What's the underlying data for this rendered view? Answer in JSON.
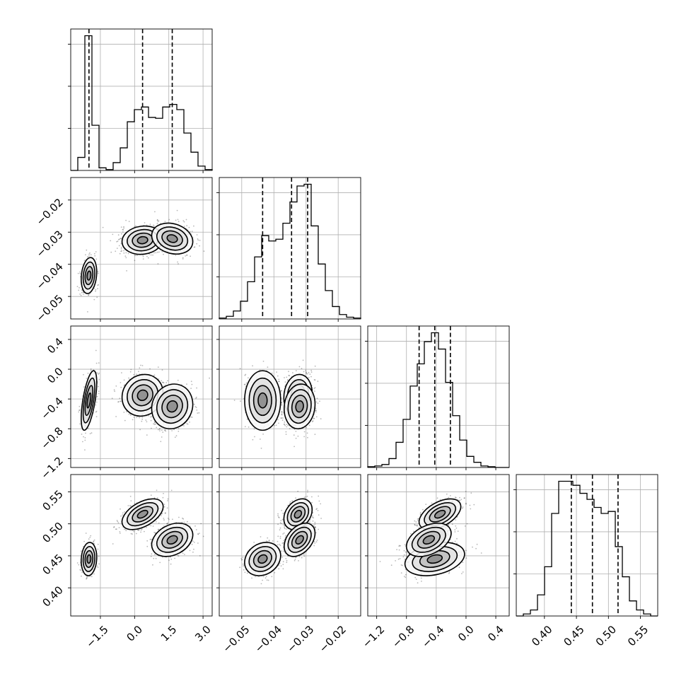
{
  "chart_data": {
    "type": "corner",
    "params": [
      {
        "range": [
          -2.8,
          3.4
        ],
        "ticks": [
          -1.5,
          0.0,
          1.5,
          3.0
        ],
        "tick_labels": [
          "−1.5",
          "0.0",
          "1.5",
          "3.0"
        ],
        "quantiles": [
          -2.0,
          0.35,
          1.65
        ],
        "modes": [
          {
            "mean": -2.0,
            "sd": 0.17,
            "weight": 0.26
          },
          {
            "mean": 0.35,
            "sd": 0.45,
            "weight": 0.37
          },
          {
            "mean": 1.65,
            "sd": 0.45,
            "weight": 0.37
          }
        ],
        "hist": [
          0,
          150,
          1550,
          520,
          30,
          10,
          90,
          260,
          560,
          700,
          730,
          610,
          600,
          730,
          760,
          700,
          430,
          210,
          50,
          10
        ]
      },
      {
        "range": [
          -0.057,
          -0.013
        ],
        "ticks": [
          -0.05,
          -0.04,
          -0.03,
          -0.02
        ],
        "tick_labels": [
          "−0.05",
          "−0.04",
          "−0.03",
          "−0.02"
        ],
        "quantiles": [
          -0.0435,
          -0.0345,
          -0.0295
        ],
        "modes": [
          {
            "mean": -0.0435,
            "sd": 0.0028,
            "weight": 0.26
          },
          {
            "mean": -0.0325,
            "sd": 0.0022,
            "weight": 0.37
          },
          {
            "mean": -0.032,
            "sd": 0.0024,
            "weight": 0.37
          }
        ],
        "hist": [
          10,
          30,
          90,
          200,
          420,
          700,
          940,
          880,
          900,
          1080,
          1320,
          1500,
          1520,
          1050,
          620,
          320,
          140,
          50,
          20,
          10
        ]
      },
      {
        "range": [
          -1.32,
          0.58
        ],
        "ticks": [
          -1.2,
          -0.8,
          -0.4,
          0.0,
          0.4
        ],
        "tick_labels": [
          "−1.2",
          "−0.8",
          "−0.4",
          "0.0",
          "0.4"
        ],
        "quantiles": [
          -0.63,
          -0.42,
          -0.21
        ],
        "modes": [
          {
            "mean": -0.42,
            "sd": 0.2,
            "weight": 0.26
          },
          {
            "mean": -0.35,
            "sd": 0.14,
            "weight": 0.37
          },
          {
            "mean": -0.5,
            "sd": 0.15,
            "weight": 0.37
          }
        ],
        "hist": [
          10,
          20,
          40,
          120,
          340,
          650,
          1100,
          1400,
          1700,
          1820,
          1600,
          1150,
          700,
          370,
          150,
          70,
          20,
          10,
          0,
          0
        ]
      },
      {
        "range": [
          0.356,
          0.577
        ],
        "ticks": [
          0.4,
          0.45,
          0.5,
          0.55
        ],
        "tick_labels": [
          "0.40",
          "0.45",
          "0.50",
          "0.55"
        ],
        "quantiles": [
          0.442,
          0.475,
          0.515
        ],
        "modes": [
          {
            "mean": 0.445,
            "sd": 0.013,
            "weight": 0.26
          },
          {
            "mean": 0.515,
            "sd": 0.012,
            "weight": 0.37
          },
          {
            "mean": 0.475,
            "sd": 0.013,
            "weight": 0.37
          }
        ],
        "hist": [
          0,
          20,
          60,
          210,
          490,
          1020,
          1340,
          1340,
          1300,
          1220,
          1160,
          1080,
          1020,
          1040,
          690,
          390,
          150,
          60,
          20,
          0
        ]
      }
    ]
  }
}
